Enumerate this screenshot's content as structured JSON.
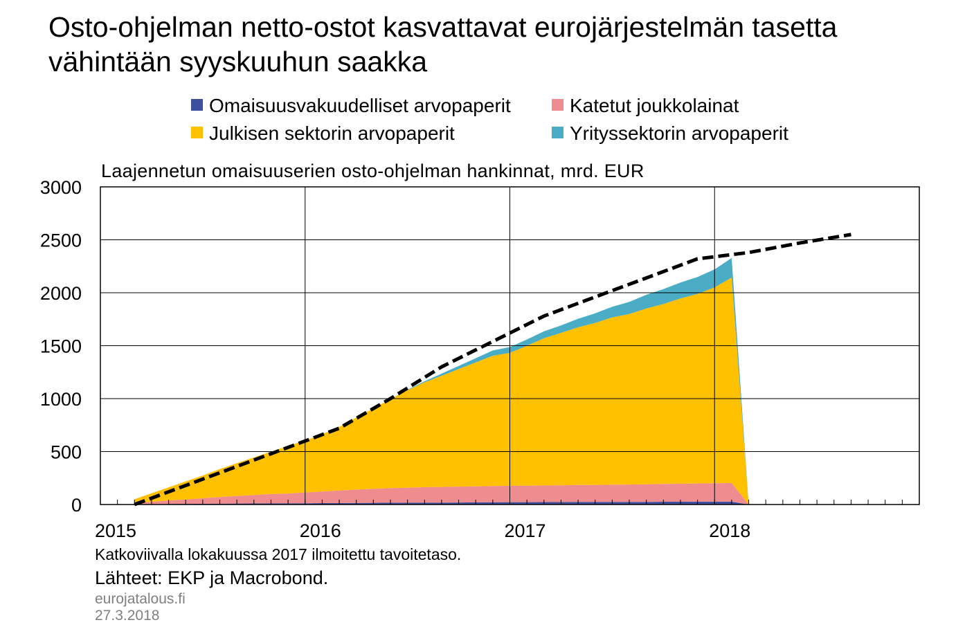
{
  "title_lines": [
    "Osto-ohjelman netto-ostot kasvattavat eurojärjestelmän tasetta",
    "vähintään syyskuuhun saakka"
  ],
  "footer": {
    "note": "Katkoviivalla lokakuussa 2017 ilmoitettu tavoitetaso.",
    "source": "Lähteet: EKP ja Macrobond.",
    "site": "eurojatalous.fi",
    "date": "27.3.2018"
  },
  "colors": {
    "abs": "#3f4fa0",
    "covered": "#ef8c8f",
    "public": "#ffc000",
    "corporate": "#4bacc6",
    "target": "#000000",
    "grid": "#000000"
  },
  "chart_data": {
    "type": "area",
    "stacked": true,
    "subtitle": "Laajennetun omaisuuserien osto-ohjelman hankinnat, mrd. EUR",
    "ylim": [
      0,
      3000
    ],
    "yticks": [
      0,
      500,
      1000,
      1500,
      2000,
      2500,
      3000
    ],
    "xlim": [
      "2015-01",
      "2019-01"
    ],
    "xtick_labels": [
      "2015",
      "2016",
      "2017",
      "2018"
    ],
    "grid": true,
    "legend_position": "top",
    "x": [
      "2015-03",
      "2015-04",
      "2015-05",
      "2015-06",
      "2015-07",
      "2015-08",
      "2015-09",
      "2015-10",
      "2015-11",
      "2015-12",
      "2016-01",
      "2016-02",
      "2016-03",
      "2016-04",
      "2016-05",
      "2016-06",
      "2016-07",
      "2016-08",
      "2016-09",
      "2016-10",
      "2016-11",
      "2016-12",
      "2017-01",
      "2017-02",
      "2017-03",
      "2017-04",
      "2017-05",
      "2017-06",
      "2017-07",
      "2017-08",
      "2017-09",
      "2017-10",
      "2017-11",
      "2017-12",
      "2018-01",
      "2018-02",
      "2018-03"
    ],
    "series": [
      {
        "name": "Omaisuusvakuudelliset arvopaperit",
        "color_key": "abs",
        "values": [
          3,
          4,
          5,
          6,
          7,
          8,
          9,
          10,
          11,
          12,
          12,
          13,
          14,
          15,
          16,
          17,
          17,
          18,
          18,
          19,
          20,
          21,
          22,
          22,
          23,
          23,
          24,
          24,
          25,
          25,
          25,
          26,
          26,
          27,
          27,
          27,
          0
        ]
      },
      {
        "name": "Katetut joukkolainat",
        "color_key": "covered",
        "values": [
          12,
          22,
          32,
          42,
          52,
          62,
          72,
          80,
          88,
          92,
          102,
          110,
          118,
          126,
          132,
          138,
          142,
          146,
          148,
          150,
          152,
          154,
          155,
          156,
          157,
          158,
          160,
          161,
          162,
          164,
          166,
          168,
          170,
          172,
          174,
          176,
          0
        ]
      },
      {
        "name": "Julkisen sektorin arvopaperit",
        "color_key": "public",
        "values": [
          35,
          80,
          125,
          170,
          215,
          265,
          310,
          355,
          400,
          450,
          490,
          540,
          600,
          680,
          760,
          840,
          920,
          990,
          1050,
          1110,
          1170,
          1230,
          1255,
          1320,
          1390,
          1440,
          1490,
          1530,
          1580,
          1610,
          1660,
          1700,
          1750,
          1790,
          1850,
          1940,
          0
        ]
      },
      {
        "name": "Yrityssektorin arvopaperit",
        "color_key": "corporate",
        "values": [
          0,
          0,
          0,
          0,
          0,
          0,
          0,
          0,
          0,
          0,
          0,
          0,
          0,
          0,
          0,
          0,
          5,
          10,
          20,
          30,
          40,
          50,
          55,
          60,
          65,
          70,
          80,
          90,
          100,
          115,
          130,
          140,
          150,
          160,
          170,
          185,
          0
        ]
      }
    ],
    "target_line": {
      "x": [
        "2015-03",
        "2015-07",
        "2015-11",
        "2016-01",
        "2016-03",
        "2016-06",
        "2016-09",
        "2016-12",
        "2017-03",
        "2017-06",
        "2017-09",
        "2017-12",
        "2018-01",
        "2018-03",
        "2018-06",
        "2018-09"
      ],
      "values": [
        0,
        240,
        480,
        600,
        720,
        1000,
        1300,
        1540,
        1780,
        1960,
        2140,
        2320,
        2340,
        2380,
        2470,
        2550
      ]
    }
  }
}
